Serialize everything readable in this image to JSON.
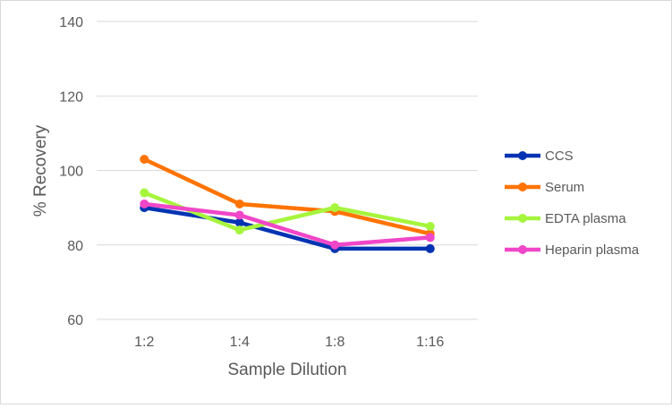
{
  "chart_data": {
    "type": "line",
    "title": "",
    "xlabel": "Sample Dilution",
    "ylabel": "% Recovery",
    "categories": [
      "1:2",
      "1:4",
      "1:8",
      "1:16"
    ],
    "ylim": [
      60,
      140
    ],
    "yticks": [
      60,
      80,
      100,
      120,
      140
    ],
    "grid": true,
    "legend": "right",
    "series": [
      {
        "name": "CCS",
        "color": "#0033b3",
        "values": [
          90,
          86,
          79,
          79
        ]
      },
      {
        "name": "Serum",
        "color": "#ff7300",
        "values": [
          103,
          91,
          89,
          83
        ]
      },
      {
        "name": "EDTA plasma",
        "color": "#a6f53d",
        "values": [
          94,
          84,
          90,
          85
        ]
      },
      {
        "name": "Heparin plasma",
        "color": "#f046c8",
        "values": [
          91,
          88,
          80,
          82
        ]
      }
    ]
  }
}
